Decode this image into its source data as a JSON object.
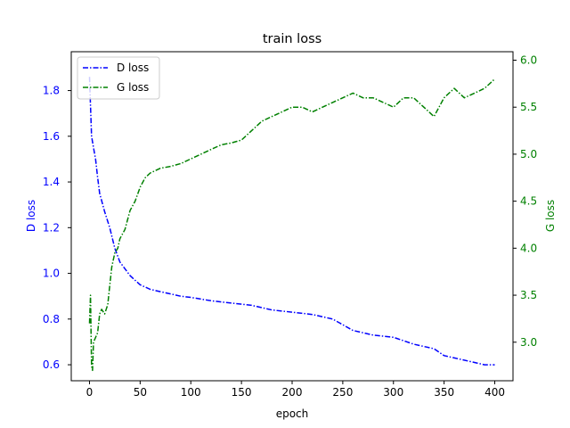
{
  "chart_data": {
    "type": "line",
    "title": "train loss",
    "xlabel": "epoch",
    "ylabel_left": "D loss",
    "ylabel_right": "G loss",
    "xlim": [
      -18,
      418
    ],
    "ylim_left": [
      0.53,
      1.97
    ],
    "ylim_right": [
      2.59,
      6.09
    ],
    "xticks": [
      0,
      50,
      100,
      150,
      200,
      250,
      300,
      350,
      400
    ],
    "yticks_left": [
      0.6,
      0.8,
      1.0,
      1.2,
      1.4,
      1.6,
      1.8
    ],
    "yticks_right": [
      3.0,
      3.5,
      4.0,
      4.5,
      5.0,
      5.5,
      6.0
    ],
    "ytick_labels_left": [
      "0.6",
      "0.8",
      "1.0",
      "1.2",
      "1.4",
      "1.6",
      "1.8"
    ],
    "ytick_labels_right": [
      "3.0",
      "3.5",
      "4.0",
      "4.5",
      "5.0",
      "5.5",
      "6.0"
    ],
    "left_axis_color": "#0000ff",
    "right_axis_color": "#008000",
    "legend_position": "upper-left",
    "grid": false,
    "series": [
      {
        "name": "D loss",
        "axis": "left",
        "color": "#0000ff",
        "linestyle": "dashdot",
        "x": [
          0,
          2,
          4,
          6,
          8,
          10,
          15,
          20,
          25,
          30,
          35,
          40,
          45,
          50,
          60,
          70,
          80,
          90,
          100,
          120,
          140,
          160,
          180,
          200,
          220,
          240,
          260,
          280,
          300,
          320,
          340,
          350,
          360,
          380,
          390,
          400
        ],
        "y": [
          1.86,
          1.6,
          1.55,
          1.5,
          1.42,
          1.35,
          1.27,
          1.2,
          1.11,
          1.05,
          1.02,
          0.99,
          0.97,
          0.95,
          0.93,
          0.92,
          0.91,
          0.9,
          0.895,
          0.88,
          0.87,
          0.86,
          0.84,
          0.83,
          0.82,
          0.8,
          0.75,
          0.73,
          0.72,
          0.69,
          0.67,
          0.64,
          0.63,
          0.61,
          0.6,
          0.6
        ]
      },
      {
        "name": "G loss",
        "axis": "right",
        "color": "#008000",
        "linestyle": "dashdot",
        "x": [
          0,
          1,
          2,
          3,
          4,
          6,
          8,
          10,
          12,
          15,
          18,
          20,
          22,
          25,
          28,
          30,
          35,
          40,
          45,
          50,
          55,
          60,
          70,
          80,
          90,
          100,
          110,
          120,
          130,
          140,
          150,
          160,
          170,
          180,
          190,
          200,
          210,
          220,
          230,
          240,
          250,
          260,
          270,
          280,
          290,
          300,
          310,
          320,
          330,
          340,
          350,
          360,
          370,
          380,
          390,
          400
        ],
        "y": [
          3.2,
          3.5,
          2.75,
          2.7,
          3.0,
          3.05,
          3.1,
          3.3,
          3.35,
          3.3,
          3.4,
          3.6,
          3.8,
          3.95,
          4.0,
          4.1,
          4.2,
          4.4,
          4.5,
          4.65,
          4.75,
          4.8,
          4.85,
          4.87,
          4.9,
          4.95,
          5.0,
          5.05,
          5.1,
          5.12,
          5.15,
          5.25,
          5.35,
          5.4,
          5.45,
          5.5,
          5.5,
          5.45,
          5.5,
          5.55,
          5.6,
          5.65,
          5.6,
          5.6,
          5.55,
          5.5,
          5.6,
          5.6,
          5.5,
          5.4,
          5.6,
          5.7,
          5.6,
          5.65,
          5.7,
          5.8
        ]
      }
    ]
  }
}
